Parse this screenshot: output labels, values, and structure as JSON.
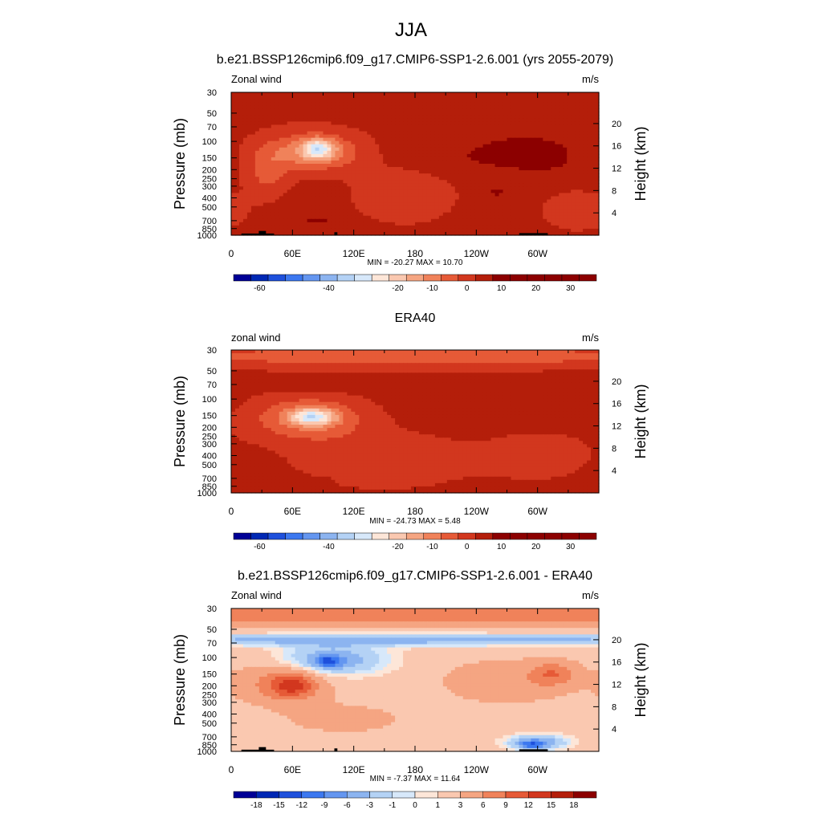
{
  "figure": {
    "title": "JJA"
  },
  "colors": {
    "wind_scale": [
      "#000096",
      "#0028b4",
      "#1e50dc",
      "#3c78f0",
      "#6496f0",
      "#8cb4f0",
      "#b4d2f5",
      "#d7e8fa",
      "#fde6d8",
      "#fac8b0",
      "#f5a582",
      "#f0825a",
      "#e65a37",
      "#d2371e",
      "#b41e0a",
      "#8c0000"
    ],
    "diff_scale": [
      "#000096",
      "#0028b4",
      "#1e50dc",
      "#3c78f0",
      "#6496f0",
      "#8cb4f0",
      "#b4d2f5",
      "#d7e8fa",
      "#fde6d8",
      "#fac8b0",
      "#f5a582",
      "#f0825a",
      "#e65a37",
      "#d2371e",
      "#b41e0a",
      "#8c0000"
    ],
    "topography": "#000000"
  },
  "chart_data": [
    {
      "type": "heatmap",
      "title": "b.e21.BSSP126cmip6.f09_g17.CMIP6-SSP1-2.6.001 (yrs 2055-2079)",
      "field_label": "Zonal wind",
      "units": "m/s",
      "ylabel": "Pressure (mb)",
      "ylabel_right": "Height (km)",
      "x_ticks": [
        "0",
        "60E",
        "120E",
        "180",
        "120W",
        "60W"
      ],
      "y_ticks": [
        "30",
        "50",
        "70",
        "100",
        "150",
        "200",
        "250",
        "300",
        "400",
        "500",
        "700",
        "850",
        "1000"
      ],
      "y_ticks_right": [
        "20",
        "16",
        "12",
        "8",
        "4"
      ],
      "stats": "MIN = -20.27  MAX =  10.70",
      "colorbar_labels": [
        "-60",
        "-40",
        "-20",
        "-10",
        "0",
        "10",
        "20",
        "30"
      ],
      "colorbar_levels": [
        -70,
        -65,
        -60,
        -55,
        -50,
        -45,
        -40,
        -35,
        -30,
        -25,
        -20,
        -15,
        -10,
        -5,
        0,
        5,
        10,
        15,
        20,
        25,
        30,
        35
      ],
      "background_value": 2,
      "features": [
        {
          "lon": 0,
          "p": 30,
          "rx": 360,
          "rp": 60,
          "value": 0
        },
        {
          "lon": 35,
          "p": 220,
          "rx": 25,
          "rp": 220,
          "value": -6
        },
        {
          "lon": 40,
          "p": 600,
          "rx": 40,
          "rp": 300,
          "value": 2
        },
        {
          "lon": 80,
          "p": 130,
          "rx": 55,
          "rp": 90,
          "value": -14
        },
        {
          "lon": 85,
          "p": 120,
          "rx": 18,
          "rp": 40,
          "value": -20
        },
        {
          "lon": 85,
          "p": 700,
          "rx": 25,
          "rp": 120,
          "value": 6
        },
        {
          "lon": 170,
          "p": 350,
          "rx": 60,
          "rp": 500,
          "value": -4
        },
        {
          "lon": 205,
          "p": 150,
          "rx": 70,
          "rp": 120,
          "value": 5
        },
        {
          "lon": 290,
          "p": 130,
          "rx": 50,
          "rp": 80,
          "value": 9
        },
        {
          "lon": 305,
          "p": 160,
          "rx": 18,
          "rp": 30,
          "value": 12
        },
        {
          "lon": 260,
          "p": 350,
          "rx": 15,
          "rp": 60,
          "value": 6
        },
        {
          "lon": 340,
          "p": 550,
          "rx": 40,
          "rp": 400,
          "value": -4
        }
      ],
      "topography": [
        {
          "lon0": 10,
          "lon1": 42,
          "p": 960
        },
        {
          "lon0": 27,
          "lon1": 34,
          "p": 900
        },
        {
          "lon0": 101,
          "lon1": 104,
          "p": 930
        },
        {
          "lon0": 282,
          "lon1": 310,
          "p": 950
        }
      ]
    },
    {
      "type": "heatmap",
      "title": "ERA40",
      "field_label": "zonal wind",
      "units": "m/s",
      "ylabel": "Pressure (mb)",
      "ylabel_right": "Height (km)",
      "x_ticks": [
        "0",
        "60E",
        "120E",
        "180",
        "120W",
        "60W"
      ],
      "y_ticks": [
        "30",
        "50",
        "70",
        "100",
        "150",
        "200",
        "250",
        "300",
        "400",
        "500",
        "700",
        "850",
        "1000"
      ],
      "y_ticks_right": [
        "20",
        "16",
        "12",
        "8",
        "4"
      ],
      "stats": "MIN = -24.73  MAX =   5.48",
      "colorbar_labels": [
        "-60",
        "-40",
        "-20",
        "-10",
        "0",
        "10",
        "20",
        "30"
      ],
      "colorbar_levels": [
        -70,
        -65,
        -60,
        -55,
        -50,
        -45,
        -40,
        -35,
        -30,
        -25,
        -20,
        -15,
        -10,
        -5,
        0,
        5,
        10,
        15,
        20,
        25,
        30,
        35
      ],
      "background_value": 2,
      "features": [
        {
          "lon": 180,
          "p": 35,
          "rx": 400,
          "rp": 15,
          "value": -8
        },
        {
          "lon": 90,
          "p": 75,
          "rx": 40,
          "rp": 15,
          "value": 4
        },
        {
          "lon": 75,
          "p": 160,
          "rx": 65,
          "rp": 140,
          "value": -12
        },
        {
          "lon": 80,
          "p": 155,
          "rx": 25,
          "rp": 40,
          "value": -22
        },
        {
          "lon": 45,
          "p": 600,
          "rx": 40,
          "rp": 260,
          "value": 2
        },
        {
          "lon": 80,
          "p": 750,
          "rx": 20,
          "rp": 80,
          "value": 5
        },
        {
          "lon": 150,
          "p": 450,
          "rx": 100,
          "rp": 550,
          "value": -4
        },
        {
          "lon": 270,
          "p": 120,
          "rx": 70,
          "rp": 80,
          "value": 5
        },
        {
          "lon": 300,
          "p": 400,
          "rx": 60,
          "rp": 400,
          "value": -3
        }
      ],
      "topography": []
    },
    {
      "type": "heatmap",
      "title": "b.e21.BSSP126cmip6.f09_g17.CMIP6-SSP1-2.6.001 - ERA40",
      "field_label": "Zonal wind",
      "units": "m/s",
      "ylabel": "Pressure (mb)",
      "ylabel_right": "Height (km)",
      "x_ticks": [
        "0",
        "60E",
        "120E",
        "180",
        "120W",
        "60W"
      ],
      "y_ticks": [
        "30",
        "50",
        "70",
        "100",
        "150",
        "200",
        "250",
        "300",
        "400",
        "500",
        "700",
        "850",
        "1000"
      ],
      "y_ticks_right": [
        "20",
        "16",
        "12",
        "8",
        "4"
      ],
      "stats": "MIN =  -7.37  MAX =  11.64",
      "colorbar_labels": [
        "-18",
        "-15",
        "-12",
        "-9",
        "-6",
        "-3",
        "-1",
        "0",
        "1",
        "3",
        "6",
        "9",
        "12",
        "15",
        "18"
      ],
      "colorbar_levels": [
        -21,
        -18,
        -15,
        -12,
        -9,
        -6,
        -3,
        -1,
        0,
        1,
        3,
        6,
        9,
        12,
        15,
        18,
        21
      ],
      "background_value": 2,
      "features": [
        {
          "lon": 180,
          "p": 35,
          "rx": 500,
          "rp": 12,
          "value": 9
        },
        {
          "lon": 180,
          "p": 65,
          "rx": 500,
          "rp": 12,
          "value": -4
        },
        {
          "lon": 100,
          "p": 105,
          "rx": 60,
          "rp": 60,
          "value": -5
        },
        {
          "lon": 95,
          "p": 110,
          "rx": 15,
          "rp": 20,
          "value": -8
        },
        {
          "lon": 50,
          "p": 190,
          "rx": 50,
          "rp": 140,
          "value": 7
        },
        {
          "lon": 60,
          "p": 200,
          "rx": 25,
          "rp": 80,
          "value": 10
        },
        {
          "lon": 270,
          "p": 180,
          "rx": 70,
          "rp": 150,
          "value": 5
        },
        {
          "lon": 315,
          "p": 150,
          "rx": 25,
          "rp": 60,
          "value": 8
        },
        {
          "lon": 110,
          "p": 450,
          "rx": 70,
          "rp": 250,
          "value": 4
        },
        {
          "lon": 60,
          "p": 700,
          "rx": 80,
          "rp": 200,
          "value": 2
        },
        {
          "lon": 300,
          "p": 800,
          "rx": 35,
          "rp": 200,
          "value": -5
        },
        {
          "lon": 295,
          "p": 850,
          "rx": 15,
          "rp": 100,
          "value": -7
        }
      ],
      "topography": [
        {
          "lon0": 10,
          "lon1": 42,
          "p": 960
        },
        {
          "lon0": 27,
          "lon1": 34,
          "p": 900
        },
        {
          "lon0": 101,
          "lon1": 104,
          "p": 930
        },
        {
          "lon0": 282,
          "lon1": 310,
          "p": 950
        }
      ]
    }
  ]
}
